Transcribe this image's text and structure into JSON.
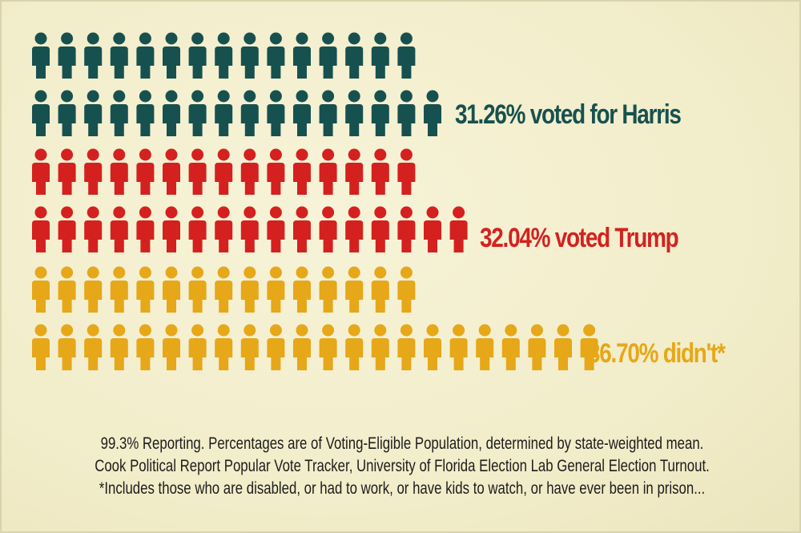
{
  "chart_data": {
    "type": "pictogram",
    "series": [
      {
        "name": "Harris",
        "label": "31.26% voted for Harris",
        "value": 31.26,
        "color": "#17514f",
        "icons": 31
      },
      {
        "name": "Trump",
        "label": "32.04% voted Trump",
        "value": 32.04,
        "color": "#d4211f",
        "icons": 32
      },
      {
        "name": "Didn't vote",
        "label": "36.70% didn't*",
        "value": 36.7,
        "color": "#e6a719",
        "icons": 37
      }
    ],
    "icon": "person-icon",
    "icons_per_first_row": 15
  },
  "footnotes": {
    "line1": "99.3% Reporting. Percentages are of Voting-Eligible Population, determined by state-weighted mean.",
    "line2": "Cook Political Report Popular Vote Tracker, University of Florida Election Lab General Election Turnout.",
    "line3": "*Includes those who are disabled, or had to work, or have kids to watch, or have ever been in prison..."
  },
  "colors": {
    "background": "#f4efcf",
    "harris": "#17514f",
    "trump": "#d4211f",
    "didnt": "#e6a719"
  }
}
